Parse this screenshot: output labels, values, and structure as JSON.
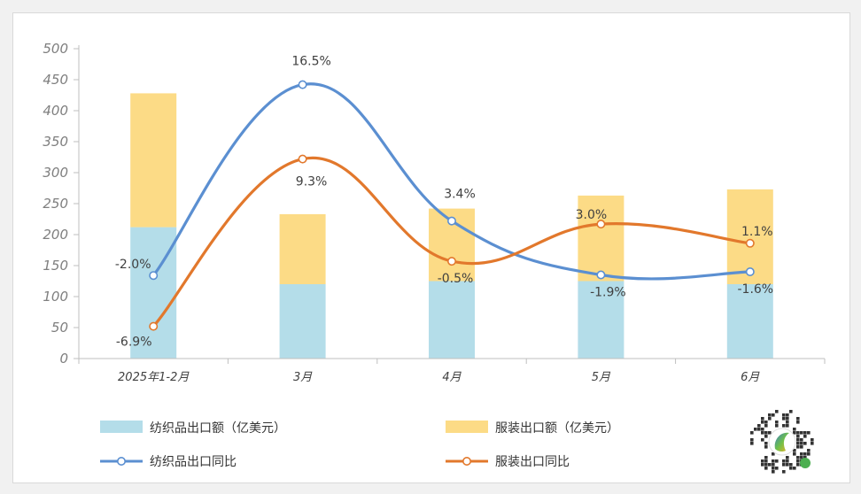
{
  "chart_data": {
    "type": "bar",
    "stacked": true,
    "categories": [
      "2025年1-2月",
      "3月",
      "4月",
      "5月",
      "6月"
    ],
    "ylim": [
      0,
      500
    ],
    "yticks": [
      0,
      50,
      100,
      150,
      200,
      250,
      300,
      350,
      400,
      450,
      500
    ],
    "grid": false,
    "legend_position": "bottom",
    "bar_series": [
      {
        "name": "纺织品出口额（亿美元）",
        "color": "#b4dde9",
        "values": [
          212,
          120,
          125,
          125,
          120
        ]
      },
      {
        "name": "服装出口额（亿美元）",
        "color": "#fcdb86",
        "values": [
          216,
          113,
          117,
          138,
          153
        ]
      }
    ],
    "line_series": [
      {
        "name": "纺织品出口同比",
        "color": "#5b8fd1",
        "values": [
          -2.0,
          16.5,
          3.4,
          -1.9,
          -1.6
        ],
        "labels": [
          "-2.0%",
          "16.5%",
          "3.4%",
          "-1.9%",
          "-1.6%"
        ],
        "plot_y": [
          134,
          442,
          222,
          135,
          140
        ]
      },
      {
        "name": "服装出口同比",
        "color": "#e2782c",
        "values": [
          -6.9,
          9.3,
          -0.5,
          3.0,
          1.1
        ],
        "labels": [
          "-6.9%",
          "9.3%",
          "-0.5%",
          "3.0%",
          "1.1%"
        ],
        "plot_y": [
          52,
          322,
          157,
          217,
          186
        ]
      }
    ]
  },
  "watermark": {
    "description": "qr-code-logo"
  }
}
